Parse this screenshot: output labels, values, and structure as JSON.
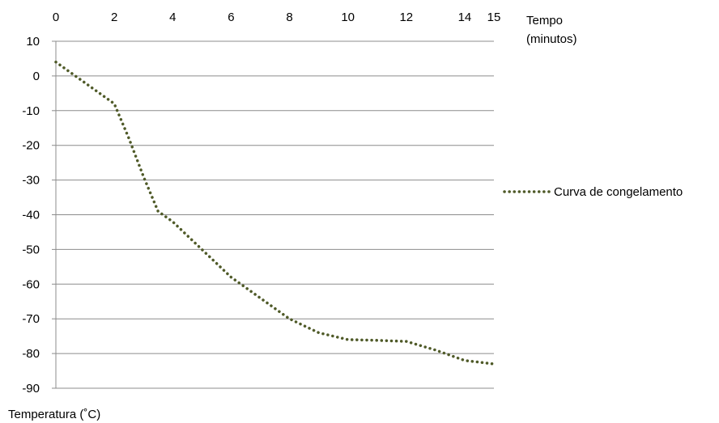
{
  "chart_data": {
    "type": "line",
    "x_axis": {
      "label_lines": [
        "Tempo",
        "(minutos)"
      ],
      "ticks": [
        0,
        2,
        4,
        6,
        8,
        10,
        12,
        14,
        15
      ],
      "range": [
        0,
        15
      ],
      "position": "top"
    },
    "y_axis": {
      "label": "Temperatura  (˚C)",
      "ticks": [
        10,
        0,
        -10,
        -20,
        -30,
        -40,
        -50,
        -60,
        -70,
        -80,
        -90
      ],
      "range": [
        -90,
        10
      ]
    },
    "grid": "horizontal",
    "legend": {
      "position": "right"
    },
    "series": [
      {
        "name": "Curva de congelamento",
        "color": "#4f5a28",
        "style": "dotted",
        "x": [
          0,
          1,
          2,
          2.5,
          3,
          3.5,
          4,
          5,
          6,
          7,
          8,
          9,
          10,
          11,
          12,
          13,
          14,
          15
        ],
        "y": [
          4,
          -2,
          -8,
          -18,
          -29,
          -39,
          -42,
          -50,
          -58,
          -64,
          -70,
          -74,
          -76,
          -76.2,
          -76.5,
          -79,
          -82,
          -83
        ]
      }
    ]
  }
}
